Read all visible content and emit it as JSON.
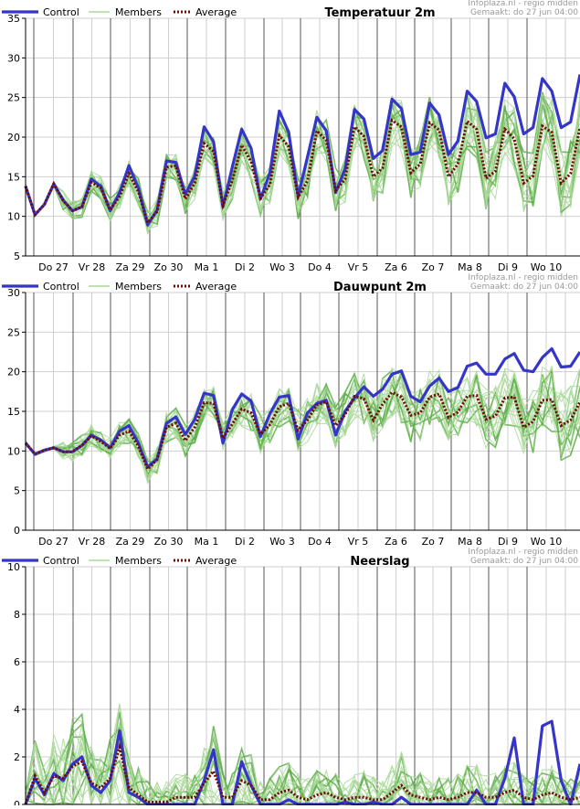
{
  "chart_data": [
    {
      "type": "line",
      "title": "Temperatuur 2m",
      "source": "Infoplaza.nl - regio midden",
      "made": "Gemaakt: do 27 jun 04:00",
      "ylim": [
        5,
        35
      ],
      "yticks": [
        5,
        10,
        15,
        20,
        25,
        30,
        35
      ],
      "x_labels": [
        "Do 27",
        "Vr 28",
        "Za 29",
        "Zo 30",
        "Ma 1",
        "Di 2",
        "Wo 3",
        "Do 4",
        "Vr 5",
        "Za 6",
        "Zo 7",
        "Ma 8",
        "Di 9",
        "Wo 10"
      ],
      "legend": [
        "Control",
        "Members",
        "Average"
      ],
      "series": [
        {
          "name": "Control",
          "values": [
            13.8,
            10.2,
            11.5,
            14.1,
            12,
            10.7,
            11.2,
            14.7,
            13.8,
            10.7,
            13,
            16.4,
            13.6,
            8.9,
            10.8,
            17,
            16.8,
            12.8,
            15.1,
            21.3,
            19.4,
            11.2,
            16.2,
            21,
            18.6,
            12.2,
            15.5,
            23.3,
            20.6,
            12.5,
            17.5,
            22.5,
            20.8,
            13,
            16,
            23.5,
            22.3,
            17.3,
            18.3,
            24.8,
            23.6,
            17.8,
            18.1,
            24.3,
            22.8,
            17.8,
            19.5,
            25.8,
            24.5,
            19.9,
            20.4,
            26.8,
            25.1,
            20.4,
            21.2,
            27.4,
            25.8,
            21.2,
            21.9,
            27.9
          ]
        },
        {
          "name": "Average",
          "values": [
            13.8,
            10.2,
            11.5,
            14.1,
            12,
            10.7,
            11.2,
            14.3,
            13.6,
            10.8,
            12.5,
            15.4,
            13.1,
            9.2,
            10.6,
            16.2,
            16.4,
            12.2,
            14.2,
            19.2,
            18.2,
            11.4,
            14.5,
            19,
            16.9,
            12.3,
            14,
            20.2,
            18.8,
            12.4,
            14.5,
            20.8,
            19.6,
            13.3,
            14.7,
            21.3,
            20.1,
            15,
            16.1,
            22.1,
            21.3,
            15.5,
            16.6,
            21.8,
            20.9,
            15,
            16.6,
            22,
            21,
            14.8,
            15.7,
            21,
            19.8,
            14.2,
            15.1,
            21.4,
            20.6,
            14.2,
            15.4,
            21.2
          ]
        }
      ]
    },
    {
      "type": "line",
      "title": "Dauwpunt 2m",
      "source": "Infoplaza.nl - regio midden",
      "made": "Gemaakt: do 27 jun 04:00",
      "ylim": [
        0,
        30
      ],
      "yticks": [
        0,
        5,
        10,
        15,
        20,
        25,
        30
      ],
      "x_labels": [
        "Do 27",
        "Vr 28",
        "Za 29",
        "Zo 30",
        "Ma 1",
        "Di 2",
        "Wo 3",
        "Do 4",
        "Vr 5",
        "Za 6",
        "Zo 7",
        "Ma 8",
        "Di 9",
        "Wo 10"
      ],
      "legend": [
        "Control",
        "Members",
        "Average"
      ],
      "series": [
        {
          "name": "Control",
          "values": [
            11,
            9.6,
            10.1,
            10.4,
            9.9,
            9.9,
            10.7,
            12,
            11.4,
            10.4,
            12.5,
            13.2,
            11,
            8,
            9,
            13.5,
            14.3,
            12.1,
            14,
            17.3,
            17,
            11,
            15.2,
            17.2,
            16.3,
            11.8,
            14.7,
            16.8,
            17,
            11.5,
            14.8,
            16,
            16.4,
            12,
            15,
            16.7,
            18.1,
            16.9,
            17.8,
            19.7,
            20.1,
            16.9,
            16.2,
            18.2,
            19.2,
            17.5,
            18,
            20.7,
            21.1,
            19.7,
            19.7,
            21.6,
            22.3,
            20.2,
            20,
            21.8,
            22.9,
            20.6,
            20.7,
            22.5
          ]
        },
        {
          "name": "Average",
          "values": [
            11,
            9.6,
            10.1,
            10.4,
            9.9,
            9.9,
            10.7,
            11.9,
            11.2,
            10.3,
            12,
            12.5,
            10.6,
            7.7,
            8.9,
            13,
            13.5,
            11.3,
            13,
            16.1,
            16,
            11.6,
            13.4,
            15.3,
            14.8,
            12.1,
            13.3,
            15.6,
            16,
            12.6,
            13.9,
            15.8,
            16.2,
            13.2,
            14.6,
            16.9,
            16.6,
            13.9,
            15.9,
            17.4,
            16.8,
            14.5,
            14.8,
            16.8,
            17.2,
            14.2,
            14.9,
            16.9,
            17,
            14,
            14.4,
            16.7,
            16.8,
            13,
            13.7,
            16.4,
            16.5,
            13.2,
            13.9,
            16.2
          ]
        }
      ]
    },
    {
      "type": "line",
      "title": "Neerslag",
      "source": "Infoplaza.nl - regio midden",
      "made": "Gemaakt: do 27 jun 04:00",
      "ylim": [
        0,
        10
      ],
      "yticks": [
        0,
        2,
        4,
        6,
        8,
        10
      ],
      "legend": [
        "Control",
        "Members",
        "Average"
      ],
      "series": [
        {
          "name": "Control",
          "values": [
            0,
            1.1,
            0.4,
            1.3,
            1,
            1.7,
            2,
            0.8,
            0.5,
            1,
            3.1,
            0.5,
            0.3,
            0,
            0,
            0,
            0,
            0,
            0,
            1,
            2.3,
            0,
            0,
            1.8,
            0.8,
            0,
            0,
            0,
            0.2,
            0,
            0,
            0,
            0,
            0,
            0.1,
            0,
            0,
            0.1,
            0,
            0,
            0.3,
            0,
            0,
            0,
            0,
            0,
            0,
            0,
            0.6,
            0,
            0,
            1.1,
            2.8,
            0,
            0,
            3.3,
            3.5,
            1,
            0,
            1.7
          ]
        },
        {
          "name": "Average",
          "values": [
            0,
            1.2,
            0.5,
            1.2,
            1.1,
            1.6,
            1.8,
            0.9,
            0.7,
            1.1,
            2.4,
            0.7,
            0.4,
            0.1,
            0.1,
            0.1,
            0.3,
            0.3,
            0.3,
            0.9,
            1.4,
            0.3,
            0.3,
            1,
            0.8,
            0.2,
            0.2,
            0.5,
            0.6,
            0.3,
            0.2,
            0.4,
            0.5,
            0.3,
            0.2,
            0.3,
            0.3,
            0.2,
            0.2,
            0.5,
            0.8,
            0.4,
            0.3,
            0.2,
            0.3,
            0.2,
            0.3,
            0.5,
            0.5,
            0.3,
            0.3,
            0.5,
            0.6,
            0.3,
            0.2,
            0.4,
            0.5,
            0.3,
            0.2,
            0.3
          ]
        }
      ]
    }
  ]
}
